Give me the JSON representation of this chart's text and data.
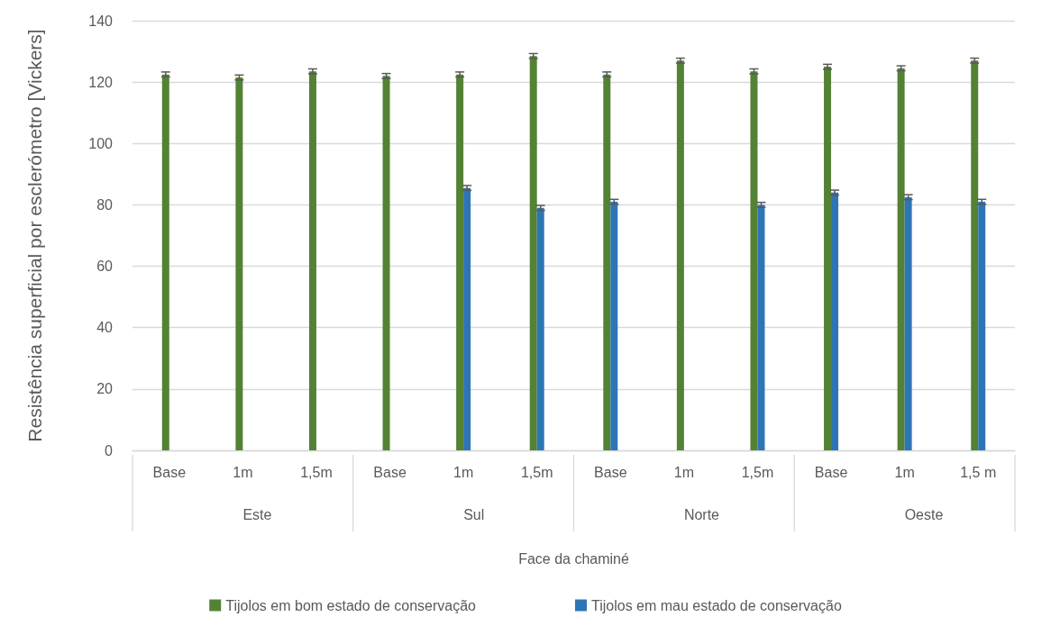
{
  "chart_data": {
    "type": "bar",
    "xlabel": "Face da chaminé",
    "ylabel": "Resistência superficial por esclerómetro [Vickers]",
    "categories": [
      "Base",
      "1m",
      "1,5m",
      "Base",
      "1m",
      "1,5m",
      "Base",
      "1m",
      "1,5m",
      "Base",
      "1m",
      "1,5 m"
    ],
    "annotations": [
      "Este",
      "Sul",
      "Norte",
      "Oeste"
    ],
    "series": [
      {
        "name": "Tijolos em bom estado de conservação",
        "color": "#548235",
        "values": [
          122.5,
          121.5,
          123.5,
          122,
          122.5,
          128.5,
          122.5,
          127,
          123.5,
          125,
          124.5,
          127
        ],
        "errors": [
          0.8,
          0.8,
          0.8,
          0.8,
          0.8,
          0.8,
          0.8,
          0.8,
          0.8,
          0.8,
          0.8,
          0.8
        ]
      },
      {
        "name": "Tijolos em mau estado de conservação",
        "color": "#2e75b6",
        "values": [
          null,
          null,
          null,
          null,
          85.5,
          79,
          81,
          null,
          80,
          84,
          82.5,
          81
        ],
        "errors": [
          null,
          null,
          null,
          null,
          0.8,
          0.8,
          0.8,
          null,
          0.8,
          0.8,
          0.8,
          0.8
        ]
      }
    ],
    "ylim": [
      0,
      140
    ],
    "yticks": [
      0,
      20,
      40,
      60,
      80,
      100,
      120,
      140
    ],
    "grid": "y",
    "legend": "bottom"
  }
}
